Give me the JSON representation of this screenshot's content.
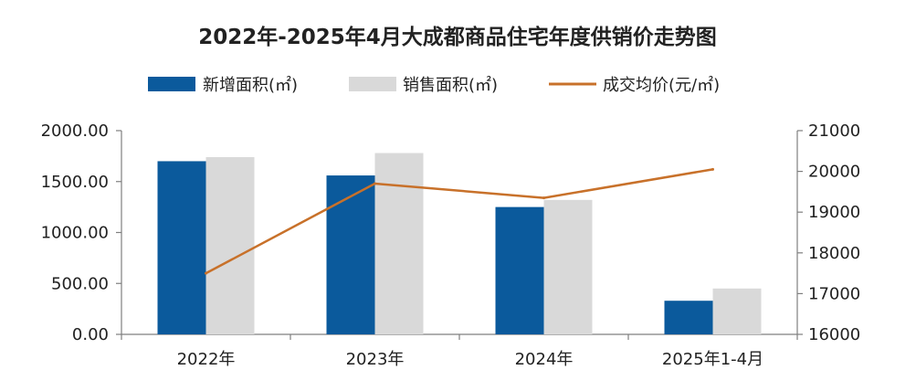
{
  "chart_data": {
    "type": "bar",
    "title": "2022年-2025年4月大成都商品住宅年度供销价走势图",
    "categories": [
      "2022年",
      "2023年",
      "2024年",
      "2025年1-4月"
    ],
    "series": [
      {
        "name": "新增面积(㎡)",
        "kind": "bar",
        "axis": "left",
        "color": "#0b5a9c",
        "values": [
          1700,
          1560,
          1250,
          330
        ]
      },
      {
        "name": "销售面积(㎡)",
        "kind": "bar",
        "axis": "left",
        "color": "#d9d9d9",
        "values": [
          1740,
          1780,
          1320,
          450
        ]
      },
      {
        "name": "成交均价(元/㎡)",
        "kind": "line",
        "axis": "right",
        "color": "#c8712a",
        "values": [
          17500,
          19700,
          19350,
          20050
        ]
      }
    ],
    "y_left": {
      "range": [
        0,
        2000
      ],
      "ticks": [
        "0.00",
        "500.00",
        "1000.00",
        "1500.00",
        "2000.00"
      ]
    },
    "y_right": {
      "range": [
        16000,
        21000
      ],
      "ticks": [
        "16000",
        "17000",
        "18000",
        "19000",
        "20000",
        "21000"
      ]
    },
    "legend_position": "top",
    "grid": false
  }
}
